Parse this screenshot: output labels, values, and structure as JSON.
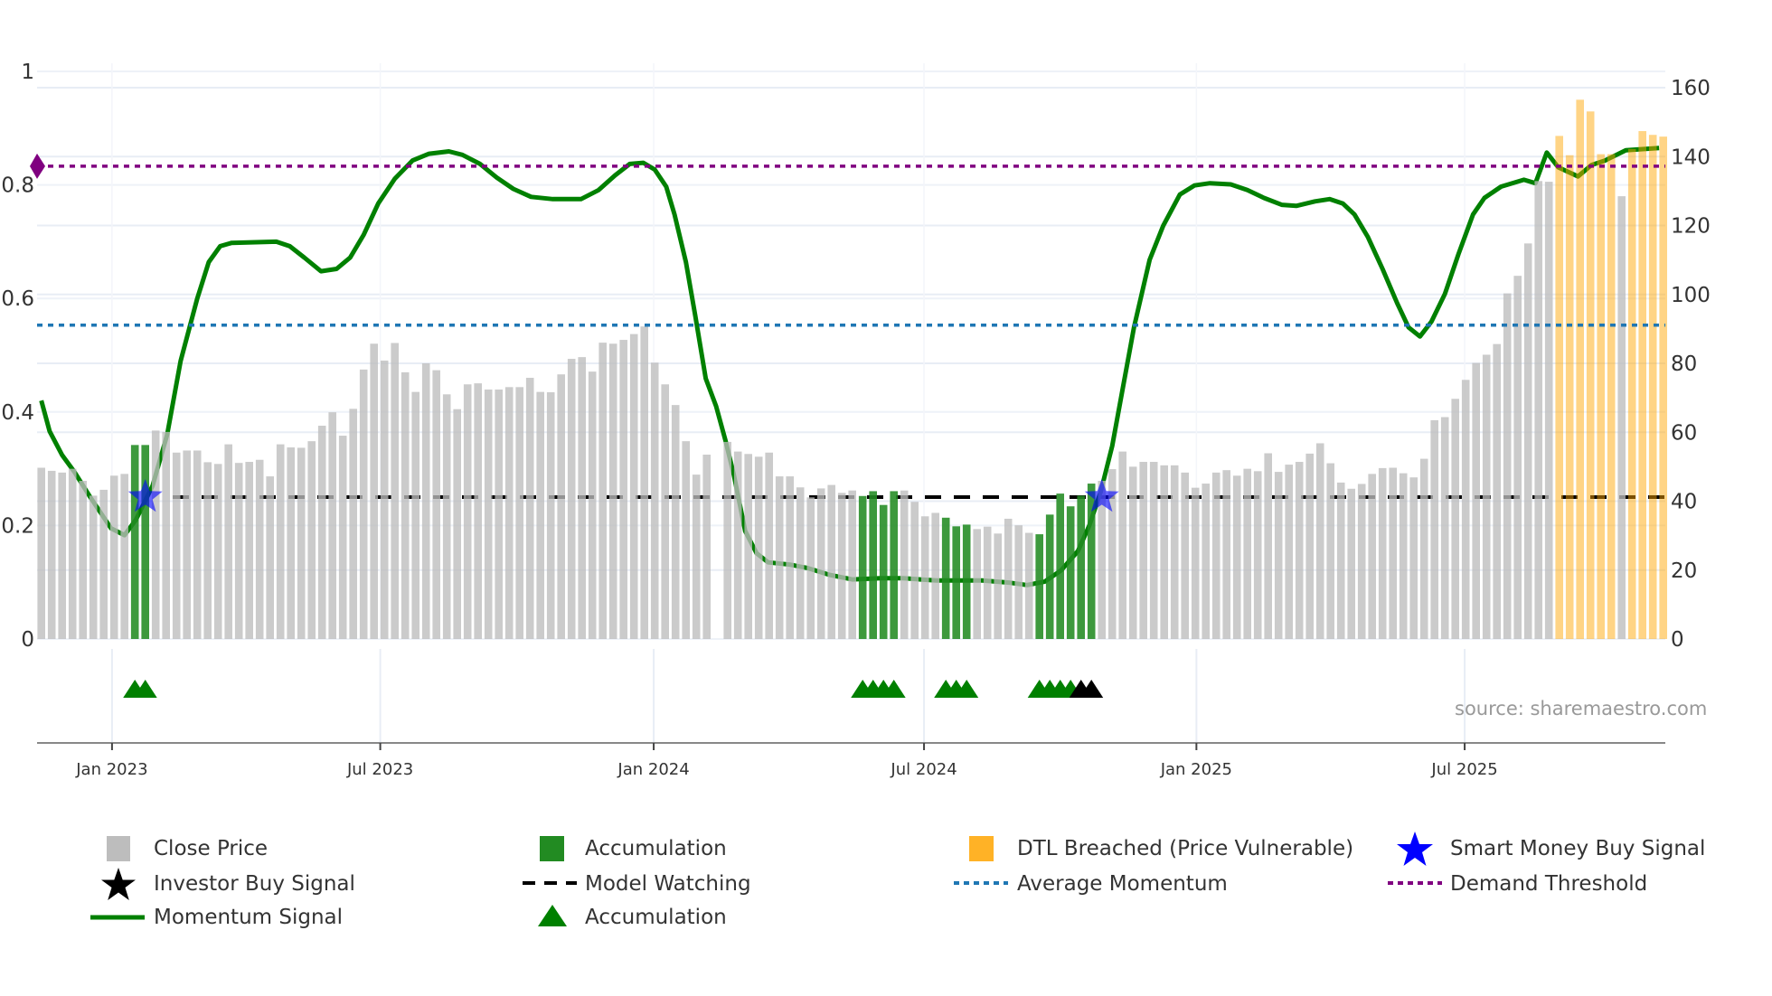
{
  "chart_data": {
    "type": "bar",
    "title": "",
    "source": "source: sharemaestro.com",
    "x_unit": "week index",
    "x_ticks": [
      {
        "pos": 6.8,
        "label": "Jan 2023"
      },
      {
        "pos": 32.6,
        "label": "Jul 2023"
      },
      {
        "pos": 58.9,
        "label": "Jan 2024"
      },
      {
        "pos": 84.9,
        "label": "Jul 2024"
      },
      {
        "pos": 111.1,
        "label": "Jan 2025"
      },
      {
        "pos": 136.9,
        "label": "Jul 2025"
      }
    ],
    "y_left": {
      "range": [
        0,
        1.0
      ],
      "ticks": [
        0,
        0.2,
        0.4,
        0.6,
        0.8,
        1
      ],
      "tick_labels": [
        "0",
        "0.2",
        "0.4",
        "0.6",
        "0.8",
        "1"
      ]
    },
    "y_right": {
      "range": [
        0,
        160
      ],
      "ticks": [
        0,
        20,
        40,
        60,
        80,
        100,
        120,
        140,
        160
      ],
      "tick_labels": [
        "0",
        "20",
        "40",
        "60",
        "80",
        "100",
        "120",
        "140",
        "160"
      ]
    },
    "close_price": [
      49.7,
      48.8,
      48.3,
      49.4,
      45.9,
      41.6,
      43.3,
      47.4,
      47.9,
      56.3,
      56.3,
      60.5,
      60.1,
      54.1,
      54.7,
      54.7,
      51.3,
      50.8,
      56.5,
      51.1,
      51.4,
      52.0,
      47.2,
      56.5,
      55.6,
      55.5,
      57.4,
      61.9,
      65.8,
      59.0,
      66.8,
      78.2,
      85.7,
      80.8,
      85.9,
      77.4,
      71.7,
      80.0,
      78.0,
      71.0,
      66.7,
      73.9,
      74.2,
      72.4,
      72.4,
      73.1,
      73.1,
      75.8,
      71.7,
      71.6,
      76.8,
      81.3,
      81.8,
      77.6,
      86.0,
      85.7,
      86.8,
      88.5,
      90.7,
      80.2,
      73.9,
      67.9,
      57.4,
      47.7,
      53.5,
      0,
      57.2,
      54.4,
      53.7,
      52.9,
      54.1,
      47.2,
      47.2,
      44.0,
      41.1,
      43.7,
      44.7,
      42.4,
      43.1,
      41.5,
      42.9,
      38.9,
      42.9,
      43.1,
      39.8,
      35.6,
      36.6,
      35.2,
      32.7,
      33.2,
      31.9,
      32.6,
      30.6,
      34.9,
      33.0,
      30.8,
      30.4,
      36.1,
      42.2,
      38.5,
      41.6,
      45.1,
      45.9,
      49.3,
      54.4,
      50.0,
      51.4,
      51.4,
      50.4,
      50.4,
      48.3,
      43.9,
      45.1,
      48.3,
      49.0,
      47.4,
      49.4,
      48.7,
      53.9,
      48.5,
      50.6,
      51.4,
      53.8,
      56.8,
      51.0,
      45.4,
      43.6,
      45.0,
      47.9,
      49.6,
      49.7,
      48.1,
      46.9,
      52.3,
      63.5,
      64.4,
      69.7,
      75.2,
      80.1,
      82.5,
      85.6,
      100.3,
      105.4,
      114.8,
      132.9,
      132.7,
      146.0,
      140.4,
      156.5,
      153.1,
      140.7,
      140.7,
      128.5,
      142.2,
      147.4,
      146.3,
      145.8
    ],
    "accumulation_weeks": [
      9,
      10,
      79,
      80,
      81,
      82,
      87,
      88,
      89,
      96,
      97,
      98,
      99,
      100,
      101
    ],
    "dtl_breached_weeks": [
      146,
      147,
      148,
      149,
      150,
      151,
      153,
      154,
      155,
      156
    ],
    "momentum_signal": [
      [
        0,
        0.42
      ],
      [
        0.8,
        0.366
      ],
      [
        2,
        0.324
      ],
      [
        3.2,
        0.294
      ],
      [
        4.7,
        0.25
      ],
      [
        6.7,
        0.195
      ],
      [
        8,
        0.183
      ],
      [
        9.1,
        0.21
      ],
      [
        10.7,
        0.27
      ],
      [
        12.1,
        0.36
      ],
      [
        13.4,
        0.49
      ],
      [
        15,
        0.6
      ],
      [
        16.1,
        0.664
      ],
      [
        17.2,
        0.692
      ],
      [
        18.3,
        0.698
      ],
      [
        22.6,
        0.7
      ],
      [
        23.9,
        0.692
      ],
      [
        25.3,
        0.672
      ],
      [
        26.9,
        0.648
      ],
      [
        28.4,
        0.652
      ],
      [
        29.7,
        0.672
      ],
      [
        31,
        0.712
      ],
      [
        32.4,
        0.767
      ],
      [
        34,
        0.811
      ],
      [
        35.7,
        0.843
      ],
      [
        37.3,
        0.855
      ],
      [
        39.2,
        0.859
      ],
      [
        40.5,
        0.853
      ],
      [
        42.2,
        0.837
      ],
      [
        43.8,
        0.813
      ],
      [
        45.4,
        0.793
      ],
      [
        47.1,
        0.779
      ],
      [
        49.2,
        0.775
      ],
      [
        51.9,
        0.775
      ],
      [
        53.6,
        0.791
      ],
      [
        55.2,
        0.817
      ],
      [
        56.6,
        0.837
      ],
      [
        57.9,
        0.839
      ],
      [
        59,
        0.827
      ],
      [
        60.1,
        0.797
      ],
      [
        60.9,
        0.748
      ],
      [
        62,
        0.664
      ],
      [
        62.9,
        0.569
      ],
      [
        63.9,
        0.459
      ],
      [
        64.9,
        0.41
      ],
      [
        65.8,
        0.35
      ],
      [
        66.6,
        0.29
      ],
      [
        67.7,
        0.19
      ],
      [
        68.8,
        0.151
      ],
      [
        69.9,
        0.135
      ],
      [
        72,
        0.131
      ],
      [
        73.7,
        0.125
      ],
      [
        75.8,
        0.113
      ],
      [
        78,
        0.105
      ],
      [
        80.7,
        0.107
      ],
      [
        82.9,
        0.107
      ],
      [
        86.1,
        0.103
      ],
      [
        90.5,
        0.103
      ],
      [
        93.2,
        0.099
      ],
      [
        94.8,
        0.095
      ],
      [
        96.5,
        0.101
      ],
      [
        98.1,
        0.121
      ],
      [
        99.7,
        0.155
      ],
      [
        100.8,
        0.2
      ],
      [
        101.9,
        0.26
      ],
      [
        103,
        0.34
      ],
      [
        104,
        0.44
      ],
      [
        105.1,
        0.549
      ],
      [
        106.6,
        0.668
      ],
      [
        107.9,
        0.728
      ],
      [
        109.5,
        0.783
      ],
      [
        110.9,
        0.799
      ],
      [
        112.4,
        0.803
      ],
      [
        114.4,
        0.801
      ],
      [
        116,
        0.791
      ],
      [
        117.6,
        0.777
      ],
      [
        119.3,
        0.765
      ],
      [
        120.7,
        0.763
      ],
      [
        122.5,
        0.771
      ],
      [
        123.9,
        0.775
      ],
      [
        125.2,
        0.767
      ],
      [
        126.3,
        0.748
      ],
      [
        127.6,
        0.708
      ],
      [
        129,
        0.652
      ],
      [
        130.4,
        0.592
      ],
      [
        131.5,
        0.549
      ],
      [
        132.6,
        0.533
      ],
      [
        133.7,
        0.559
      ],
      [
        135,
        0.608
      ],
      [
        136.3,
        0.678
      ],
      [
        137.7,
        0.748
      ],
      [
        138.8,
        0.777
      ],
      [
        140.4,
        0.797
      ],
      [
        142.6,
        0.809
      ],
      [
        143.7,
        0.803
      ],
      [
        144.8,
        0.857
      ],
      [
        145.9,
        0.831
      ],
      [
        147.8,
        0.815
      ],
      [
        149.1,
        0.835
      ],
      [
        150.4,
        0.843
      ],
      [
        152.4,
        0.861
      ],
      [
        154,
        0.863
      ],
      [
        155.6,
        0.865
      ]
    ],
    "model_watching_level": 0.25,
    "average_momentum": 0.553,
    "demand_threshold": 0.833,
    "smart_money_buy_signals": [
      [
        10,
        0.25
      ],
      [
        102,
        0.25
      ]
    ],
    "accumulation_triangles": [
      9,
      10,
      79,
      80,
      81,
      82,
      87,
      88,
      89,
      96,
      97,
      98,
      99
    ],
    "investor_buy_triangles": [
      100,
      101
    ],
    "colors": {
      "close_price": "#bdbdbd",
      "accumulation": "#228b22",
      "dtl": "#ffa500",
      "momentum": "#008000",
      "average_momentum": "#1f77b4",
      "demand_threshold": "#800080",
      "smart_money": "#0000ff",
      "investor": "#000000"
    },
    "legend": [
      {
        "label": "Close Price",
        "icon": "gray-square"
      },
      {
        "label": "Accumulation",
        "icon": "green-square"
      },
      {
        "label": "DTL Breached (Price Vulnerable)",
        "icon": "orange-square"
      },
      {
        "label": "Smart Money Buy Signal",
        "icon": "blue-star"
      },
      {
        "label": "Investor Buy Signal",
        "icon": "black-star"
      },
      {
        "label": "Model Watching",
        "icon": "black-dashed-line"
      },
      {
        "label": "Average Momentum",
        "icon": "blue-dotted-line"
      },
      {
        "label": "Demand Threshold",
        "icon": "purple-dotted-line"
      },
      {
        "label": "Momentum Signal",
        "icon": "green-line"
      },
      {
        "label": "Accumulation",
        "icon": "green-triangle"
      }
    ]
  }
}
